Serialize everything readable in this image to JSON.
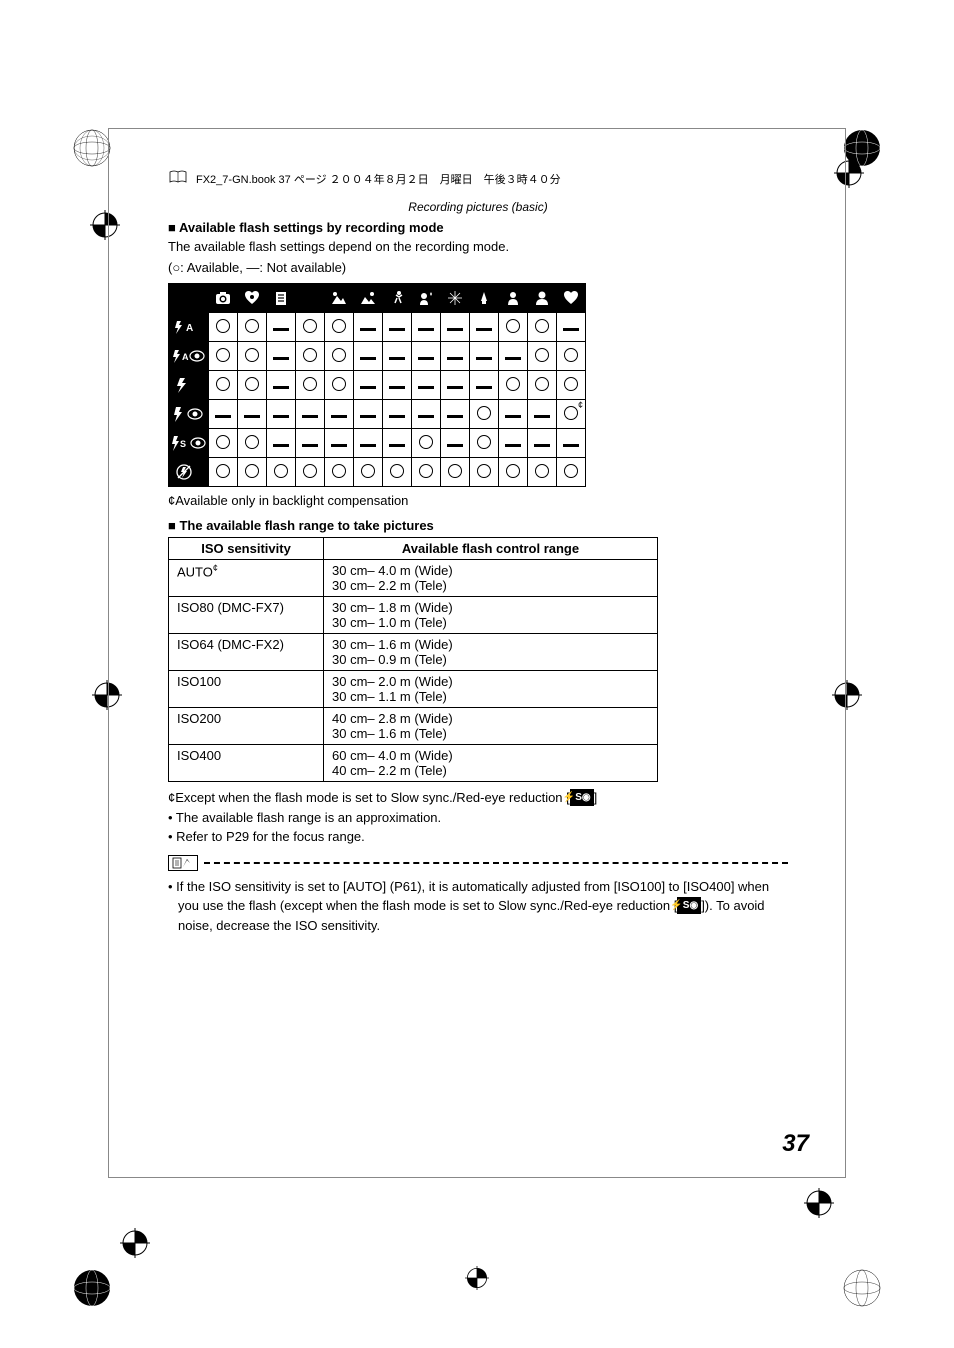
{
  "header": {
    "book_text": "FX2_7-GN.book  37 ページ  ２００４年８月２日　月曜日　午後３時４０分"
  },
  "section_header": "Recording pictures (basic)",
  "section1": {
    "title": "■ Available flash settings by recording mode",
    "desc": "The available flash settings depend on the recording mode.",
    "legend": "(○:  Available, —:  Not available)"
  },
  "flash_matrix": {
    "col_icons": [
      "camera",
      "heart-hand",
      "clipboard",
      "moon",
      "mountain",
      "sunset",
      "runner",
      "face",
      "grid",
      "party",
      "candle",
      "portrait",
      "heart"
    ],
    "rows": [
      {
        "label": "flash-auto",
        "icon": "flash-a",
        "cells": [
          "O",
          "O",
          "-",
          "O",
          "O",
          "-",
          "-",
          "-",
          "-",
          "-",
          "O",
          "O",
          "-"
        ]
      },
      {
        "label": "flash-auto-redeye",
        "icon": "flash-a-eye",
        "cells": [
          "O",
          "O",
          "-",
          "O",
          "O",
          "-",
          "-",
          "-",
          "-",
          "-",
          "-",
          "O",
          "O"
        ]
      },
      {
        "label": "flash-on",
        "icon": "flash",
        "cells": [
          "O",
          "O",
          "-",
          "O",
          "O",
          "-",
          "-",
          "-",
          "-",
          "-",
          "O",
          "O",
          "O"
        ]
      },
      {
        "label": "flash-redeye",
        "icon": "flash-eye",
        "cells": [
          "-",
          "-",
          "-",
          "-",
          "-",
          "-",
          "-",
          "-",
          "-",
          "O",
          "-",
          "-",
          "O*"
        ]
      },
      {
        "label": "flash-slow-redeye",
        "icon": "flash-s-eye",
        "cells": [
          "O",
          "O",
          "-",
          "-",
          "-",
          "-",
          "-",
          "O",
          "-",
          "O",
          "-",
          "-",
          "-"
        ]
      },
      {
        "label": "flash-off",
        "icon": "flash-off",
        "cells": [
          "O",
          "O",
          "O",
          "O",
          "O",
          "O",
          "O",
          "O",
          "O",
          "O",
          "O",
          "O",
          "O"
        ]
      }
    ],
    "footnote": "¢Available only in backlight compensation"
  },
  "section2": {
    "title": "■ The available flash range to take pictures",
    "table": {
      "headers": [
        "ISO sensitivity",
        "Available flash control range"
      ],
      "rows": [
        {
          "iso": "AUTO",
          "star": true,
          "range": [
            "30 cm– 4.0 m (Wide)",
            "30 cm– 2.2 m (Tele)"
          ]
        },
        {
          "iso": "ISO80 (DMC-FX7)",
          "range": [
            "30 cm– 1.8 m (Wide)",
            "30 cm– 1.0 m (Tele)"
          ]
        },
        {
          "iso": "ISO64 (DMC-FX2)",
          "range": [
            "30 cm– 1.6 m (Wide)",
            "30 cm– 0.9 m (Tele)"
          ]
        },
        {
          "iso": "ISO100",
          "range": [
            "30 cm– 2.0 m (Wide)",
            "30 cm– 1.1 m (Tele)"
          ]
        },
        {
          "iso": "ISO200",
          "range": [
            "40 cm– 2.8 m (Wide)",
            "30 cm– 1.6 m (Tele)"
          ]
        },
        {
          "iso": "ISO400",
          "range": [
            "60 cm– 4.0 m (Wide)",
            "40 cm– 2.2 m (Tele)"
          ]
        }
      ]
    },
    "notes": [
      "¢Except when the flash mode is set to Slow sync./Red-eye reduction [",
      "• The available flash range is an approximation.",
      "• Refer to P29 for the focus range."
    ]
  },
  "final_note": {
    "text_1": "• If the ISO sensitivity is set to [AUTO] (P61), it is automatically adjusted from [ISO100] to [ISO400] when you use the flash (except when the flash mode is set to Slow sync./Red-eye reduction [",
    "text_2": "]). To avoid noise, decrease the ISO sensitivity."
  },
  "page_number": "37",
  "colors": {
    "black": "#000000",
    "white": "#ffffff"
  }
}
